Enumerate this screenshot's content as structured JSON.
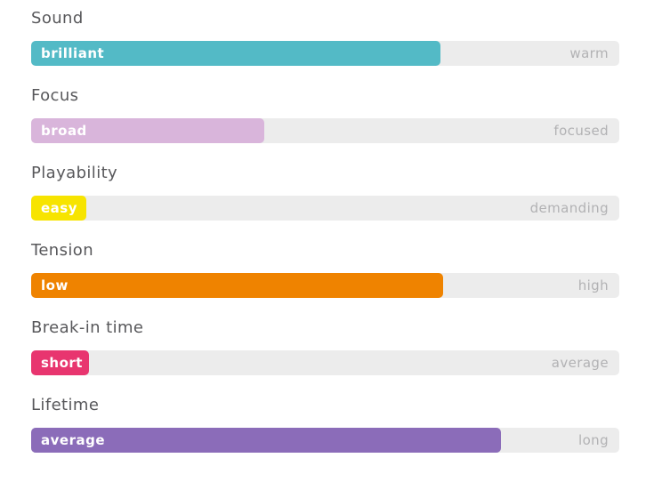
{
  "chart_data": {
    "type": "bar",
    "orientation": "horizontal",
    "title": "",
    "track_color": "#ececec",
    "value_range": [
      0,
      100
    ],
    "rows": [
      {
        "attribute": "Sound",
        "value_label": "brilliant",
        "right_label": "warm",
        "percent": 69.6,
        "color": "#53bac6"
      },
      {
        "attribute": "Focus",
        "value_label": "broad",
        "right_label": "focused",
        "percent": 39.6,
        "color": "#d9b5db"
      },
      {
        "attribute": "Playability",
        "value_label": "easy",
        "right_label": "demanding",
        "percent": 9.4,
        "color": "#f7e400"
      },
      {
        "attribute": "Tension",
        "value_label": "low",
        "right_label": "high",
        "percent": 70.0,
        "color": "#ef8300"
      },
      {
        "attribute": "Break-in time",
        "value_label": "short",
        "right_label": "average",
        "percent": 9.8,
        "color": "#e8356f"
      },
      {
        "attribute": "Lifetime",
        "value_label": "average",
        "right_label": "long",
        "percent": 79.9,
        "color": "#8b6cb9"
      }
    ]
  },
  "colors": {
    "background": "#ffffff",
    "attribute_label": "#58585b",
    "right_label": "#b2b2b4",
    "track": "#ececec",
    "bar_text": "#ffffff"
  }
}
